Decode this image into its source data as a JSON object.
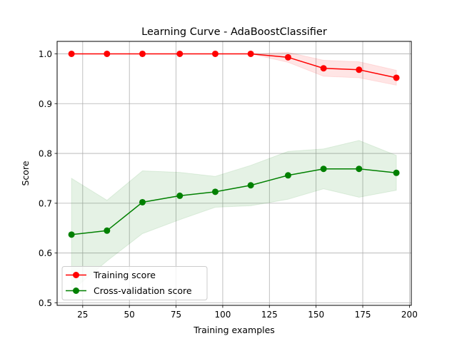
{
  "chart_data": {
    "type": "line",
    "title": "Learning Curve - AdaBoostClassifier",
    "xlabel": "Training examples",
    "ylabel": "Score",
    "xlim": [
      11.3,
      201
    ],
    "ylim": [
      0.495,
      1.025
    ],
    "grid": true,
    "legend_position": "lower-left",
    "x_ticks": [
      25,
      50,
      75,
      100,
      125,
      150,
      175,
      200
    ],
    "y_ticks": [
      0.5,
      0.6,
      0.7,
      0.8,
      0.9,
      1.0
    ],
    "x": [
      19,
      38,
      57,
      77,
      96,
      115,
      135,
      154,
      173,
      193
    ],
    "series": [
      {
        "name": "Training score",
        "color": "#ff0000",
        "band_color": "#ff0000",
        "values": [
          1.0,
          1.0,
          1.0,
          1.0,
          1.0,
          1.0,
          0.993,
          0.971,
          0.968,
          0.952
        ],
        "band_lower": [
          1.0,
          1.0,
          1.0,
          1.0,
          1.0,
          1.0,
          0.983,
          0.955,
          0.952,
          0.937
        ],
        "band_upper": [
          1.0,
          1.0,
          1.0,
          1.0,
          1.0,
          1.0,
          1.003,
          0.987,
          0.984,
          0.967
        ]
      },
      {
        "name": "Cross-validation score",
        "color": "#008000",
        "band_color": "#008000",
        "values": [
          0.637,
          0.645,
          0.702,
          0.715,
          0.723,
          0.736,
          0.756,
          0.769,
          0.769,
          0.761
        ],
        "band_lower": [
          0.524,
          0.584,
          0.639,
          0.667,
          0.692,
          0.695,
          0.708,
          0.729,
          0.712,
          0.726
        ],
        "band_upper": [
          0.75,
          0.706,
          0.765,
          0.762,
          0.754,
          0.776,
          0.804,
          0.809,
          0.826,
          0.796
        ]
      }
    ]
  }
}
